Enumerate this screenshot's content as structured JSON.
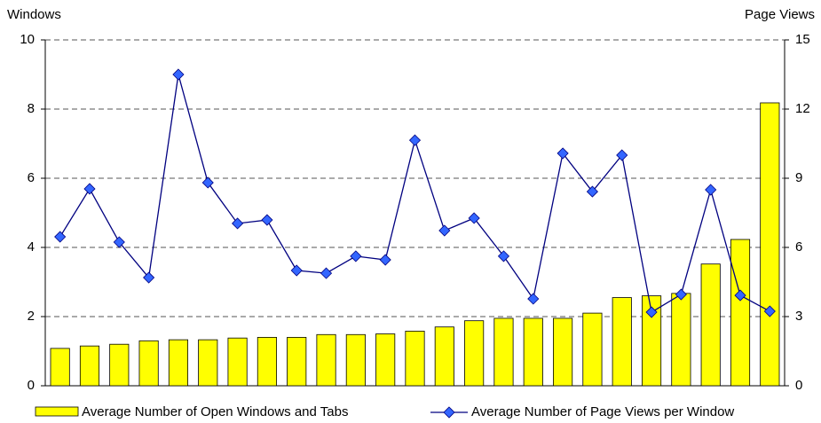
{
  "chart_data": {
    "type": "bar-line",
    "y_label": "Windows",
    "y2_label": "Page Views",
    "categories": [
      null,
      null,
      null,
      null,
      null,
      null,
      null,
      null,
      null,
      null,
      null,
      null,
      null,
      null,
      null,
      null,
      null,
      null,
      null,
      null,
      null,
      null,
      null,
      null,
      null
    ],
    "series": [
      {
        "name": "Average Number of Open Windows and Tabs",
        "type": "bar",
        "color": "#ffff00",
        "values": [
          1.08,
          1.15,
          1.2,
          1.3,
          1.33,
          1.33,
          1.38,
          1.4,
          1.4,
          1.48,
          1.48,
          1.5,
          1.58,
          1.7,
          1.88,
          1.95,
          1.95,
          1.95,
          2.1,
          2.55,
          2.6,
          2.67,
          3.52,
          4.23,
          8.18
        ]
      },
      {
        "name": "Average Number of Page Views per Window",
        "type": "line",
        "axis": "y2",
        "color": "#000080",
        "marker_color": "#3366ff",
        "values": [
          6.46,
          8.54,
          6.23,
          4.69,
          13.5,
          8.81,
          7.04,
          7.19,
          5.0,
          4.88,
          5.62,
          5.46,
          10.65,
          6.73,
          7.27,
          5.62,
          3.77,
          10.08,
          8.42,
          10.0,
          3.19,
          3.96,
          8.5,
          3.92,
          3.23
        ]
      }
    ],
    "ylim": [
      0,
      10
    ],
    "yticks": [
      0,
      2,
      4,
      6,
      8,
      10
    ],
    "y2lim": [
      0,
      15
    ],
    "y2ticks": [
      0,
      3,
      6,
      9,
      12,
      15
    ],
    "grid": true,
    "legend": "bottom"
  }
}
